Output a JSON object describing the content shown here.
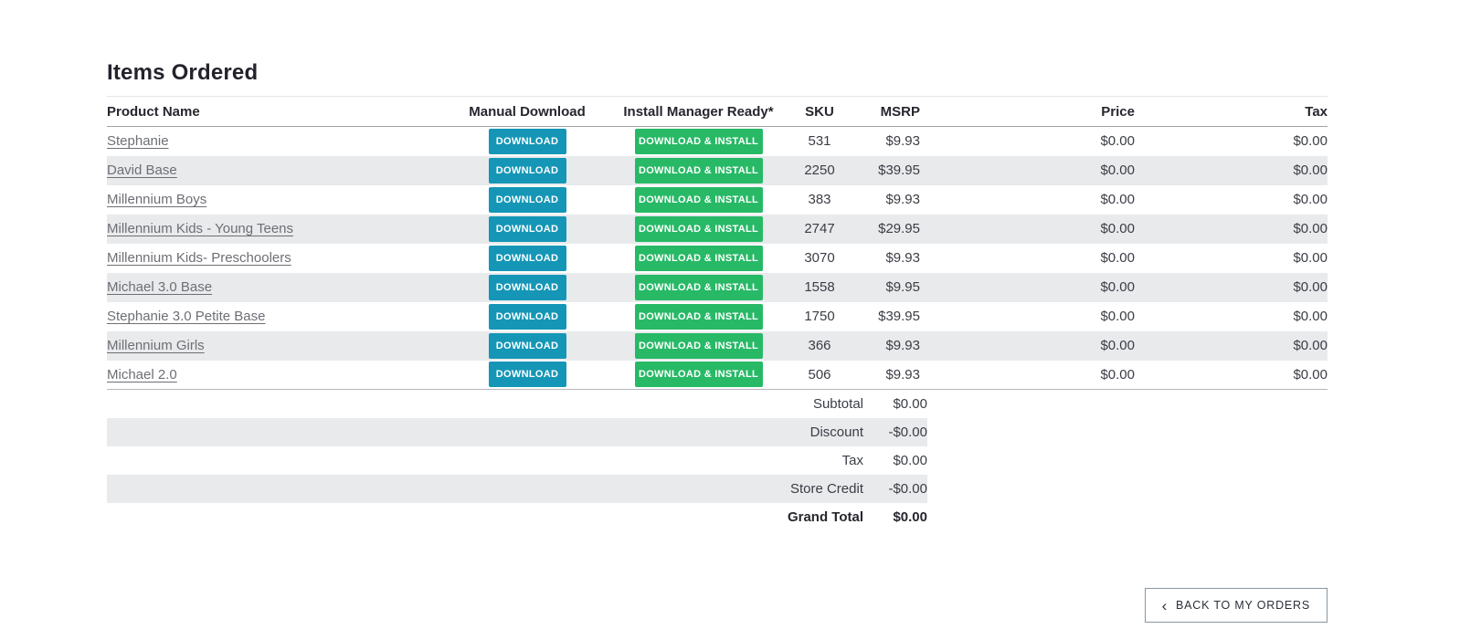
{
  "page": {
    "title": "Items Ordered"
  },
  "table": {
    "headers": {
      "product": "Product Name",
      "manual": "Manual Download",
      "install": "Install Manager Ready*",
      "sku": "SKU",
      "msrp": "MSRP",
      "price": "Price",
      "tax": "Tax"
    },
    "download_label": "DOWNLOAD",
    "install_label": "DOWNLOAD & INSTALL",
    "rows": [
      {
        "product": "Stephanie",
        "sku": "531",
        "msrp": "$9.93",
        "price": "$0.00",
        "tax": "$0.00"
      },
      {
        "product": "David Base",
        "sku": "2250",
        "msrp": "$39.95",
        "price": "$0.00",
        "tax": "$0.00"
      },
      {
        "product": "Millennium Boys",
        "sku": "383",
        "msrp": "$9.93",
        "price": "$0.00",
        "tax": "$0.00"
      },
      {
        "product": "Millennium Kids - Young Teens",
        "sku": "2747",
        "msrp": "$29.95",
        "price": "$0.00",
        "tax": "$0.00"
      },
      {
        "product": "Millennium Kids- Preschoolers",
        "sku": "3070",
        "msrp": "$9.93",
        "price": "$0.00",
        "tax": "$0.00"
      },
      {
        "product": "Michael 3.0 Base",
        "sku": "1558",
        "msrp": "$9.95",
        "price": "$0.00",
        "tax": "$0.00"
      },
      {
        "product": "Stephanie 3.0 Petite Base",
        "sku": "1750",
        "msrp": "$39.95",
        "price": "$0.00",
        "tax": "$0.00"
      },
      {
        "product": "Millennium Girls",
        "sku": "366",
        "msrp": "$9.93",
        "price": "$0.00",
        "tax": "$0.00"
      },
      {
        "product": "Michael 2.0",
        "sku": "506",
        "msrp": "$9.93",
        "price": "$0.00",
        "tax": "$0.00"
      }
    ]
  },
  "summary": {
    "rows": [
      {
        "label": "Subtotal",
        "value": "$0.00"
      },
      {
        "label": "Discount",
        "value": "-$0.00"
      },
      {
        "label": "Tax",
        "value": "$0.00"
      },
      {
        "label": "Store Credit",
        "value": "-$0.00"
      },
      {
        "label": "Grand Total",
        "value": "$0.00"
      }
    ]
  },
  "footer": {
    "back_chevron": "‹",
    "back_button_label": "BACK TO MY ORDERS"
  },
  "colors": {
    "teal": "#1596b6",
    "green": "#27b966",
    "row_shade": "#e8eaec"
  }
}
